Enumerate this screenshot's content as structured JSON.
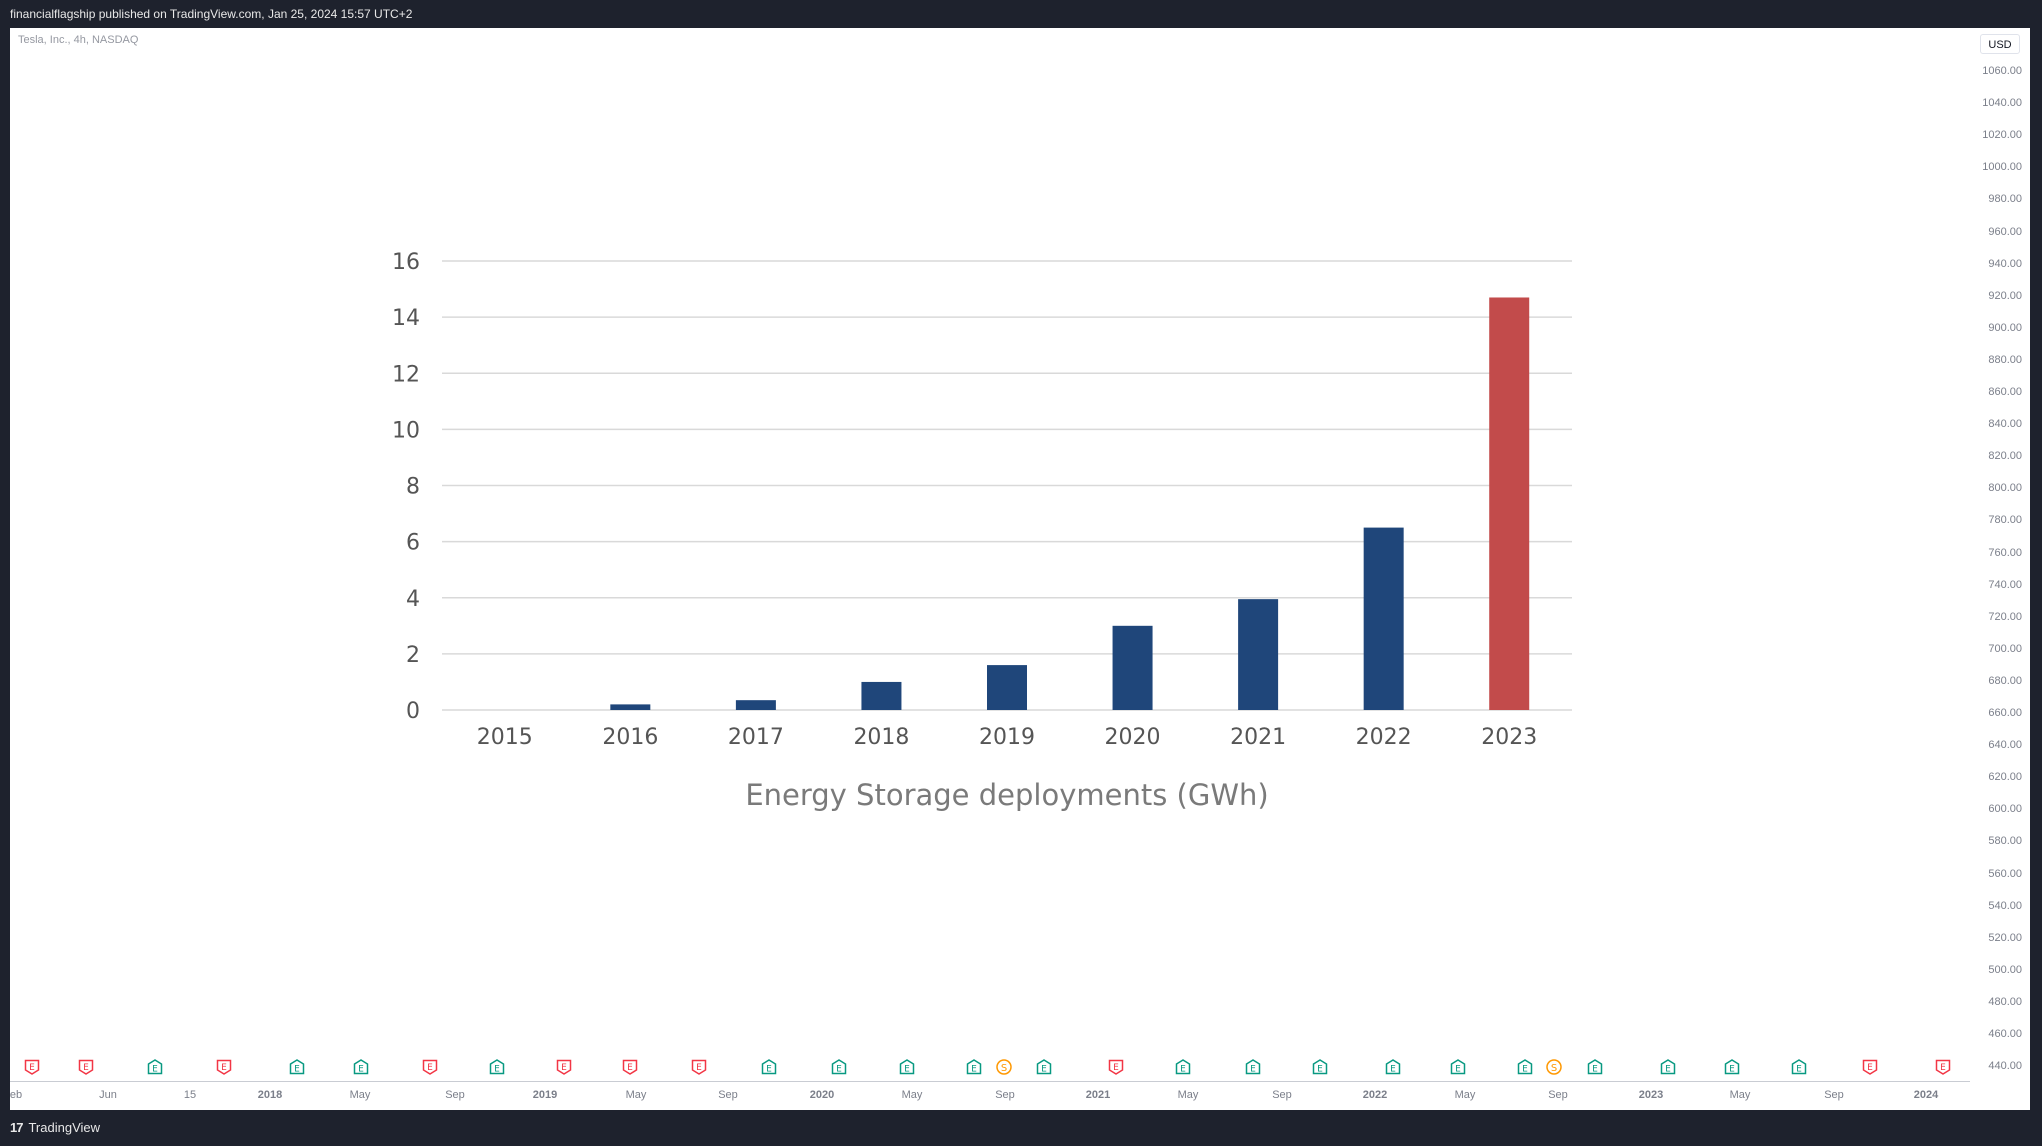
{
  "header": {
    "published": "financialflagship published on TradingView.com, Jan 25, 2024 15:57 UTC+2"
  },
  "symbol_info": "Tesla, Inc., 4h, NASDAQ",
  "price_axis": {
    "currency": "USD",
    "ticks": [
      "1060.00",
      "1040.00",
      "1020.00",
      "1000.00",
      "980.00",
      "960.00",
      "940.00",
      "920.00",
      "900.00",
      "880.00",
      "860.00",
      "840.00",
      "820.00",
      "800.00",
      "780.00",
      "760.00",
      "740.00",
      "720.00",
      "700.00",
      "680.00",
      "660.00",
      "640.00",
      "620.00",
      "600.00",
      "580.00",
      "560.00",
      "540.00",
      "520.00",
      "500.00",
      "480.00",
      "460.00",
      "440.00"
    ]
  },
  "time_axis": {
    "labels": [
      {
        "text": "eb",
        "bold": false
      },
      {
        "text": "Jun",
        "bold": false
      },
      {
        "text": "15",
        "bold": false
      },
      {
        "text": "2018",
        "bold": true
      },
      {
        "text": "May",
        "bold": false
      },
      {
        "text": "Sep",
        "bold": false
      },
      {
        "text": "2019",
        "bold": true
      },
      {
        "text": "May",
        "bold": false
      },
      {
        "text": "Sep",
        "bold": false
      },
      {
        "text": "2020",
        "bold": true
      },
      {
        "text": "May",
        "bold": false
      },
      {
        "text": "Sep",
        "bold": false
      },
      {
        "text": "2021",
        "bold": true
      },
      {
        "text": "May",
        "bold": false
      },
      {
        "text": "Sep",
        "bold": false
      },
      {
        "text": "2022",
        "bold": true
      },
      {
        "text": "May",
        "bold": false
      },
      {
        "text": "Sep",
        "bold": false
      },
      {
        "text": "2023",
        "bold": true
      },
      {
        "text": "May",
        "bold": false
      },
      {
        "text": "Sep",
        "bold": false
      },
      {
        "text": "2024",
        "bold": true
      }
    ]
  },
  "events": {
    "sequence": [
      "E-red",
      "E-red",
      "E-green",
      "E-red",
      "E-green",
      "E-green",
      "E-red",
      "E-green",
      "E-red",
      "E-red",
      "E-red",
      "E-green",
      "E-green",
      "E-green",
      "E-green",
      "S-orange",
      "E-green",
      "E-red",
      "E-green",
      "E-green",
      "E-green",
      "E-green",
      "E-green",
      "E-green",
      "S-orange",
      "E-green",
      "E-green",
      "E-green",
      "E-green",
      "E-red",
      "E-red"
    ],
    "colors": {
      "red": "#f23645",
      "green": "#089981",
      "orange": "#ff9800"
    },
    "letters": {
      "earnings": "E",
      "split": "S"
    }
  },
  "footer": {
    "brand": "TradingView",
    "logo_icon": "tradingview-logo-icon"
  },
  "chart_data": {
    "type": "bar",
    "title": "Energy Storage deployments (GWh)",
    "xlabel": "",
    "ylabel": "",
    "categories": [
      "2015",
      "2016",
      "2017",
      "2018",
      "2019",
      "2020",
      "2021",
      "2022",
      "2023"
    ],
    "values": [
      0,
      0.2,
      0.35,
      1.0,
      1.6,
      3.0,
      3.95,
      6.5,
      14.7
    ],
    "yticks": [
      "0",
      "2",
      "4",
      "6",
      "8",
      "10",
      "12",
      "14",
      "16"
    ],
    "ylim": [
      0,
      16
    ],
    "grid": true,
    "legend": "none",
    "colors": {
      "default": "#1f467a",
      "highlight": "#c24b4b"
    },
    "highlight_category": "2023",
    "axis_text_color": "#555555",
    "grid_color": "#d9d9d9"
  }
}
